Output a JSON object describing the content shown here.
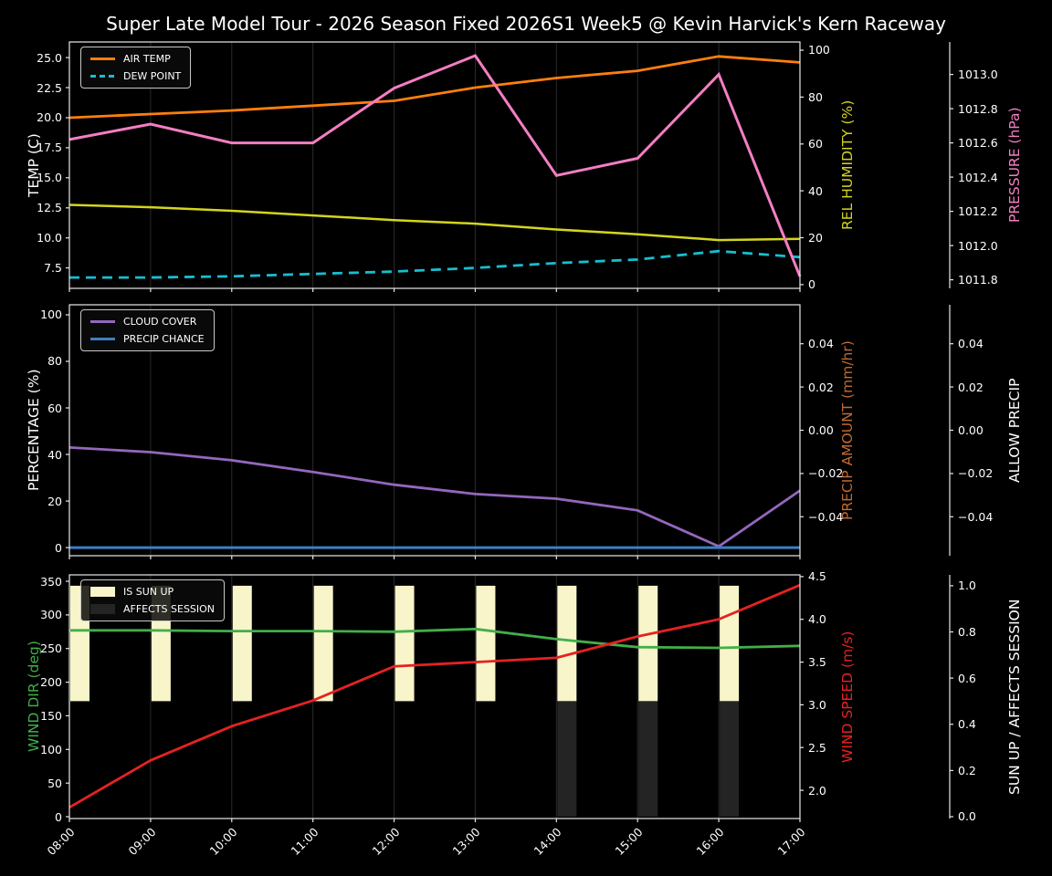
{
  "title": "Super Late Model Tour - 2026 Season Fixed 2026S1 Week5 @ Kevin Harvick's Kern Raceway",
  "colors": {
    "background": "#000000",
    "spine": "#e8e8e8",
    "grid": "#2a2a2a",
    "text": "#ffffff",
    "air_temp": "#ff7f0e",
    "dew_point": "#17becf",
    "rel_humidity": "#d3d51e",
    "pressure": "#f47ec3",
    "cloud_cover": "#9467bd",
    "precip_chance": "#3b80c2",
    "precip_amount_label": "#c06a32",
    "wind_dir": "#42ae4a",
    "wind_speed": "#e52222",
    "sun_up_bar": "#f7f5c9",
    "affects_session_bar": "#242424"
  },
  "chart_data": [
    {
      "id": "temperature",
      "type": "line",
      "x": [
        "08:00",
        "09:00",
        "10:00",
        "11:00",
        "12:00",
        "13:00",
        "14:00",
        "15:00",
        "16:00",
        "17:00"
      ],
      "legend": [
        {
          "label": "AIR TEMP",
          "color": "#ff7f0e",
          "kind": "line"
        },
        {
          "label": "DEW POINT",
          "color": "#17becf",
          "kind": "dash"
        }
      ],
      "axes": {
        "left": {
          "label": "TEMP (C)",
          "color": "#ffffff",
          "range": [
            5.8,
            26.3
          ],
          "tick_vals": [
            7.5,
            10.0,
            12.5,
            15.0,
            17.5,
            20.0,
            22.5,
            25.0
          ],
          "tick_labels": [
            "7.5",
            "10.0",
            "12.5",
            "15.0",
            "17.5",
            "20.0",
            "22.5",
            "25.0"
          ]
        },
        "right1": {
          "label": "REL HUMIDITY (%)",
          "color": "#d3d51e",
          "range": [
            -1.6,
            103.5
          ],
          "tick_vals": [
            0,
            20,
            40,
            60,
            80,
            100
          ],
          "tick_labels": [
            "0",
            "20",
            "40",
            "60",
            "80",
            "100"
          ]
        },
        "right2": {
          "label": "PRESSURE (hPa)",
          "color": "#f47ec3",
          "range": [
            1011.75,
            1013.19
          ],
          "tick_vals": [
            1011.8,
            1012.0,
            1012.2,
            1012.4,
            1012.6,
            1012.8,
            1013.0
          ],
          "tick_labels": [
            "1011.8",
            "1012.0",
            "1012.2",
            "1012.4",
            "1012.6",
            "1012.8",
            "1013.0"
          ]
        }
      },
      "series": [
        {
          "name": "AIR TEMP",
          "slug": "air-temp",
          "axis": "left",
          "color": "#ff7f0e",
          "dash": false,
          "lw": 2.8,
          "values": [
            20.0,
            20.3,
            20.6,
            21.0,
            21.4,
            22.5,
            23.3,
            23.9,
            25.1,
            24.6
          ]
        },
        {
          "name": "DEW POINT",
          "slug": "dew-point",
          "axis": "left",
          "color": "#17becf",
          "dash": true,
          "lw": 2.8,
          "values": [
            6.7,
            6.7,
            6.8,
            7.0,
            7.2,
            7.5,
            7.9,
            8.2,
            8.9,
            8.4
          ]
        },
        {
          "name": "REL HUMIDITY",
          "slug": "rel-humidity",
          "axis": "right1",
          "color": "#d3d51e",
          "dash": false,
          "lw": 2.5,
          "values": [
            34,
            33,
            31.5,
            29.5,
            27.5,
            26,
            23.5,
            21.5,
            19,
            19.5
          ]
        },
        {
          "name": "PRESSURE",
          "slug": "pressure",
          "axis": "right2",
          "color": "#f47ec3",
          "dash": false,
          "lw": 3,
          "values": [
            1012.62,
            1012.71,
            1012.6,
            1012.6,
            1012.92,
            1013.11,
            1012.41,
            1012.51,
            1013.0,
            1011.82
          ]
        }
      ],
      "bars": []
    },
    {
      "id": "precipitation",
      "type": "line",
      "x": [
        "08:00",
        "09:00",
        "10:00",
        "11:00",
        "12:00",
        "13:00",
        "14:00",
        "15:00",
        "16:00",
        "17:00"
      ],
      "legend": [
        {
          "label": "CLOUD COVER",
          "color": "#9467bd",
          "kind": "line"
        },
        {
          "label": "PRECIP CHANCE",
          "color": "#3b80c2",
          "kind": "line"
        }
      ],
      "axes": {
        "left": {
          "label": "PERCENTAGE (%)",
          "color": "#ffffff",
          "range": [
            -3.5,
            104.3
          ],
          "tick_vals": [
            0,
            20,
            40,
            60,
            80,
            100
          ],
          "tick_labels": [
            "0",
            "20",
            "40",
            "60",
            "80",
            "100"
          ]
        },
        "right1": {
          "label": "PRECIP AMOUNT (mm/hr)",
          "color": "#c06a32",
          "range": [
            -0.058,
            0.058
          ],
          "tick_vals": [
            -0.04,
            -0.02,
            0.0,
            0.02,
            0.04
          ],
          "tick_labels": [
            "−0.04",
            "−0.02",
            "0.00",
            "0.02",
            "0.04"
          ]
        },
        "right2": {
          "label": "ALLOW PRECIP",
          "color": "#ffffff",
          "range": [
            -0.058,
            0.058
          ],
          "tick_vals": [
            -0.04,
            -0.02,
            0.0,
            0.02,
            0.04
          ],
          "tick_labels": [
            "−0.04",
            "−0.02",
            "0.00",
            "0.02",
            "0.04"
          ]
        }
      },
      "series": [
        {
          "name": "CLOUD COVER",
          "slug": "cloud-cover",
          "axis": "left",
          "color": "#9467bd",
          "dash": false,
          "lw": 2.8,
          "values": [
            43,
            41,
            37.5,
            32.5,
            27,
            23,
            21,
            16,
            0.5,
            24.5
          ]
        },
        {
          "name": "PRECIP CHANCE",
          "slug": "precip-chance",
          "axis": "left",
          "color": "#3b80c2",
          "dash": false,
          "lw": 3,
          "values": [
            0,
            0,
            0,
            0,
            0,
            0,
            0,
            0,
            0,
            0
          ]
        }
      ],
      "bars": []
    },
    {
      "id": "wind",
      "type": "line-bar",
      "x": [
        "08:00",
        "09:00",
        "10:00",
        "11:00",
        "12:00",
        "13:00",
        "14:00",
        "15:00",
        "16:00",
        "17:00"
      ],
      "show_x_labels": true,
      "legend": [
        {
          "label": "IS SUN UP",
          "color": "#f7f5c9",
          "kind": "patch"
        },
        {
          "label": "AFFECTS SESSION",
          "color": "#242424",
          "kind": "patch"
        }
      ],
      "axes": {
        "left": {
          "label": "WIND DIR (deg)",
          "color": "#42ae4a",
          "range": [
            -2.7,
            359.5
          ],
          "tick_vals": [
            0,
            50,
            100,
            150,
            200,
            250,
            300,
            350
          ],
          "tick_labels": [
            "0",
            "50",
            "100",
            "150",
            "200",
            "250",
            "300",
            "350"
          ]
        },
        "right1": {
          "label": "WIND SPEED (m/s)",
          "color": "#e52222",
          "range": [
            1.67,
            4.52
          ],
          "tick_vals": [
            2.0,
            2.5,
            3.0,
            3.5,
            4.0,
            4.5
          ],
          "tick_labels": [
            "2.0",
            "2.5",
            "3.0",
            "3.5",
            "4.0",
            "4.5"
          ]
        },
        "right2": {
          "label": "SUN UP / AFFECTS SESSION",
          "color": "#ffffff",
          "range": [
            -0.008,
            1.047
          ],
          "tick_vals": [
            0.0,
            0.2,
            0.4,
            0.6,
            0.8,
            1.0
          ],
          "tick_labels": [
            "0.0",
            "0.2",
            "0.4",
            "0.6",
            "0.8",
            "1.0"
          ]
        }
      },
      "series": [
        {
          "name": "WIND DIR",
          "slug": "wind-dir",
          "axis": "left",
          "color": "#42ae4a",
          "dash": false,
          "lw": 2.8,
          "values": [
            277,
            277,
            276,
            276,
            275,
            279,
            264,
            252,
            251,
            254
          ]
        },
        {
          "name": "WIND SPEED",
          "slug": "wind-speed",
          "axis": "right1",
          "color": "#e52222",
          "dash": false,
          "lw": 2.8,
          "values": [
            1.8,
            2.35,
            2.75,
            3.05,
            3.45,
            3.5,
            3.55,
            3.8,
            4.0,
            4.4
          ]
        }
      ],
      "bars": [
        {
          "name": "IS SUN UP",
          "slug": "is-sun-up",
          "axis": "right2",
          "color": "#f7f5c9",
          "from": 0.5,
          "to": 1.0,
          "hours": [
            0,
            1,
            2,
            3,
            4,
            5,
            6,
            7,
            8
          ]
        },
        {
          "name": "AFFECTS SESSION",
          "slug": "affects-session",
          "axis": "right2",
          "color": "#242424",
          "from": 0.0,
          "to": 0.5,
          "hours": [
            6,
            7,
            8
          ]
        }
      ]
    }
  ]
}
